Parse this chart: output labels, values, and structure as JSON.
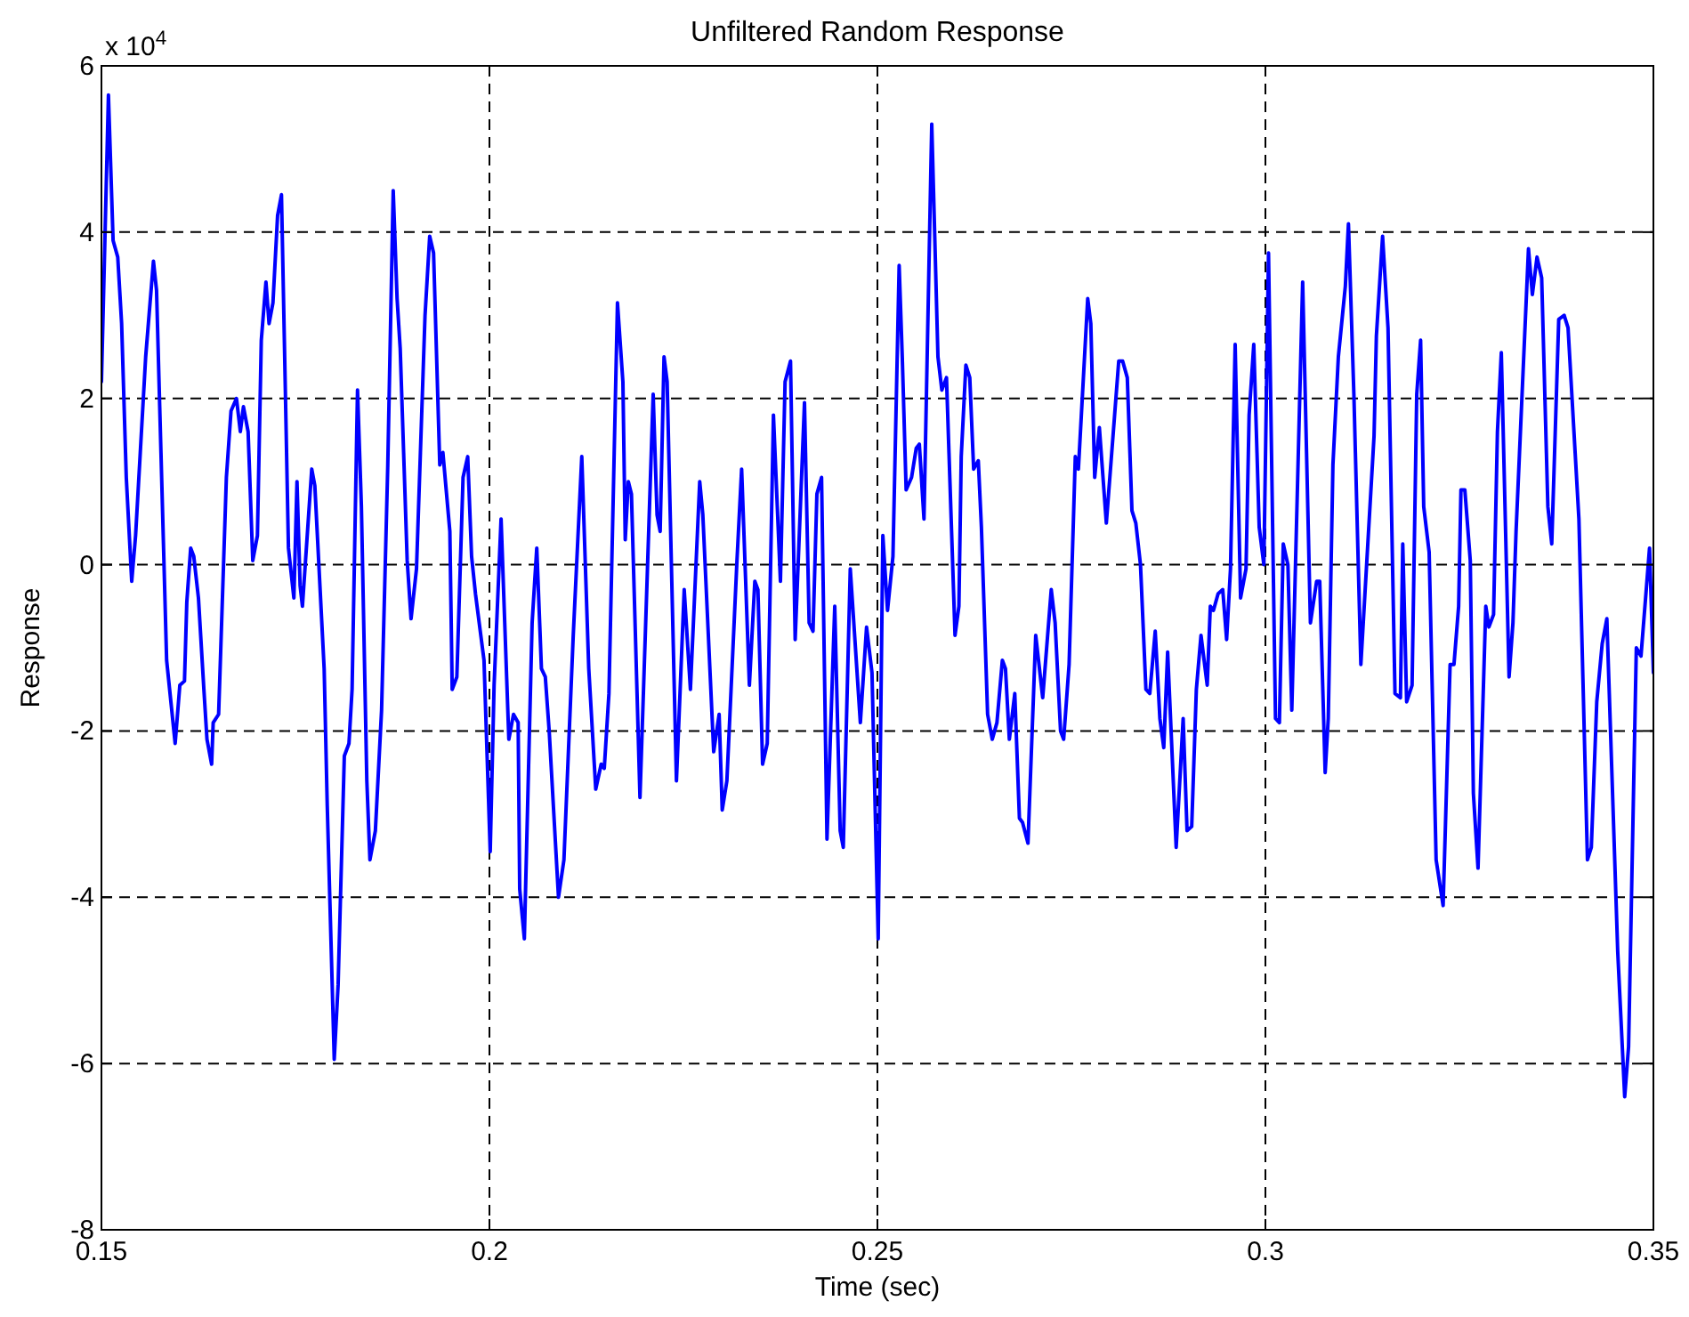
{
  "chart_data": {
    "type": "line",
    "title": "Unfiltered Random Response",
    "xlabel": "Time (sec)",
    "ylabel": "Response",
    "annotations": [
      "x 10$^{4}$"
    ],
    "xlim": [
      0.15,
      0.35
    ],
    "xticks": [
      0.15,
      0.2,
      0.25,
      0.3,
      0.35
    ],
    "ylim": [
      -8,
      6
    ],
    "yticks": [
      -8,
      -6,
      -4,
      -2,
      0,
      2,
      4,
      6
    ],
    "grid": true,
    "line_style": "solid",
    "series": [
      {
        "color": "#0000ff",
        "x": [
          0.15,
          0.1509,
          0.1515,
          0.1521,
          0.1526,
          0.1532,
          0.1539,
          0.1544,
          0.1557,
          0.1567,
          0.1571,
          0.1584,
          0.1595,
          0.1601,
          0.1607,
          0.161,
          0.1615,
          0.1619,
          0.1625,
          0.1632,
          0.1636,
          0.1642,
          0.1644,
          0.1651,
          0.1661,
          0.1667,
          0.1674,
          0.1679,
          0.1683,
          0.1689,
          0.1695,
          0.1701,
          0.1706,
          0.1712,
          0.1716,
          0.1721,
          0.1727,
          0.1732,
          0.1741,
          0.1748,
          0.1752,
          0.1756,
          0.1759,
          0.1771,
          0.1775,
          0.1787,
          0.1791,
          0.18,
          0.1805,
          0.1813,
          0.1819,
          0.1823,
          0.183,
          0.1835,
          0.1842,
          0.1846,
          0.1853,
          0.1861,
          0.1869,
          0.1876,
          0.1881,
          0.1885,
          0.1894,
          0.1899,
          0.1906,
          0.1917,
          0.1923,
          0.1928,
          0.1936,
          0.194,
          0.1949,
          0.1952,
          0.1958,
          0.1966,
          0.1972,
          0.1977,
          0.1982,
          0.1993,
          0.2001,
          0.2006,
          0.2015,
          0.2025,
          0.2031,
          0.2037,
          0.2039,
          0.2045,
          0.2055,
          0.2061,
          0.2067,
          0.2072,
          0.2077,
          0.2089,
          0.2096,
          0.2108,
          0.2119,
          0.2128,
          0.2137,
          0.2144,
          0.2148,
          0.2154,
          0.2165,
          0.2172,
          0.2175,
          0.2179,
          0.2183,
          0.2194,
          0.2211,
          0.2216,
          0.222,
          0.2225,
          0.2229,
          0.2241,
          0.2251,
          0.2259,
          0.2271,
          0.2275,
          0.2289,
          0.2296,
          0.23,
          0.2306,
          0.2319,
          0.2325,
          0.2335,
          0.2342,
          0.2346,
          0.2352,
          0.2358,
          0.2366,
          0.2375,
          0.2381,
          0.2388,
          0.2394,
          0.2406,
          0.2412,
          0.2417,
          0.2422,
          0.2428,
          0.2435,
          0.2445,
          0.2452,
          0.2456,
          0.2465,
          0.2478,
          0.2486,
          0.2493,
          0.2501,
          0.2507,
          0.2513,
          0.252,
          0.2528,
          0.2532,
          0.2537,
          0.2544,
          0.255,
          0.2554,
          0.256,
          0.257,
          0.2578,
          0.2583,
          0.2589,
          0.26,
          0.2605,
          0.2608,
          0.2614,
          0.2619,
          0.2624,
          0.263,
          0.2634,
          0.2642,
          0.2648,
          0.2654,
          0.2661,
          0.2665,
          0.267,
          0.2677,
          0.2683,
          0.2687,
          0.2694,
          0.2704,
          0.2713,
          0.2724,
          0.2729,
          0.2736,
          0.274,
          0.2747,
          0.2755,
          0.2759,
          0.2771,
          0.2775,
          0.278,
          0.2786,
          0.2795,
          0.2811,
          0.2816,
          0.2822,
          0.2828,
          0.2833,
          0.2839,
          0.2846,
          0.2851,
          0.2858,
          0.2864,
          0.2869,
          0.2874,
          0.2885,
          0.2894,
          0.2899,
          0.2905,
          0.2911,
          0.2917,
          0.2925,
          0.2929,
          0.2933,
          0.2939,
          0.2945,
          0.295,
          0.2955,
          0.2961,
          0.2968,
          0.2975,
          0.2979,
          0.2985,
          0.2992,
          0.2998,
          0.3004,
          0.3013,
          0.3018,
          0.3023,
          0.3029,
          0.3034,
          0.3048,
          0.3058,
          0.3066,
          0.307,
          0.3077,
          0.3081,
          0.3087,
          0.3094,
          0.3103,
          0.3107,
          0.3114,
          0.3123,
          0.314,
          0.3143,
          0.3151,
          0.3158,
          0.3167,
          0.3174,
          0.3177,
          0.3182,
          0.3189,
          0.3195,
          0.32,
          0.3204,
          0.3211,
          0.322,
          0.3229,
          0.3238,
          0.3243,
          0.3249,
          0.3252,
          0.3257,
          0.3264,
          0.3268,
          0.3274,
          0.3284,
          0.3288,
          0.3294,
          0.3299,
          0.3304,
          0.3314,
          0.3319,
          0.3323,
          0.3339,
          0.3344,
          0.335,
          0.3356,
          0.3364,
          0.3369,
          0.3378,
          0.3385,
          0.339,
          0.3404,
          0.3415,
          0.342,
          0.3427,
          0.3434,
          0.344,
          0.3454,
          0.3463,
          0.3468,
          0.3478,
          0.3484,
          0.3495,
          0.35
        ],
        "values": [
          2.2,
          5.65,
          3.9,
          3.7,
          2.9,
          1.05,
          -0.2,
          0.35,
          2.5,
          3.65,
          3.3,
          -1.15,
          -2.15,
          -1.45,
          -1.4,
          -0.45,
          0.2,
          0.1,
          -0.4,
          -1.5,
          -2.1,
          -2.4,
          -1.9,
          -1.8,
          1.05,
          1.85,
          2.0,
          1.6,
          1.9,
          1.6,
          0.05,
          0.35,
          2.7,
          3.4,
          2.9,
          3.15,
          4.2,
          4.45,
          0.2,
          -0.4,
          1.0,
          -0.25,
          -0.5,
          1.15,
          0.95,
          -1.25,
          -2.9,
          -5.95,
          -5.05,
          -2.3,
          -2.15,
          -1.5,
          2.1,
          0.7,
          -2.6,
          -3.55,
          -3.2,
          -1.75,
          1.2,
          4.5,
          3.2,
          2.6,
          0.05,
          -0.65,
          -0.05,
          3.0,
          3.95,
          3.75,
          1.2,
          1.35,
          0.4,
          -1.5,
          -1.35,
          1.05,
          1.3,
          0.1,
          -0.35,
          -1.15,
          -3.45,
          -1.45,
          0.55,
          -2.1,
          -1.8,
          -1.9,
          -3.9,
          -4.5,
          -0.7,
          0.2,
          -1.25,
          -1.35,
          -2.0,
          -4.0,
          -3.55,
          -0.85,
          1.3,
          -1.25,
          -2.7,
          -2.4,
          -2.45,
          -1.55,
          3.15,
          2.2,
          0.3,
          1.0,
          0.85,
          -2.8,
          2.05,
          0.6,
          0.4,
          2.5,
          2.2,
          -2.6,
          -0.3,
          -1.5,
          1.0,
          0.6,
          -2.25,
          -1.8,
          -2.95,
          -2.6,
          0.05,
          1.15,
          -1.45,
          -0.2,
          -0.3,
          -2.4,
          -2.15,
          1.8,
          -0.2,
          2.2,
          2.45,
          -0.9,
          1.95,
          -0.7,
          -0.8,
          0.85,
          1.05,
          -3.3,
          -0.5,
          -3.2,
          -3.4,
          -0.05,
          -1.9,
          -0.75,
          -1.3,
          -4.5,
          0.35,
          -0.55,
          0.1,
          3.6,
          2.5,
          0.9,
          1.05,
          1.4,
          1.45,
          0.55,
          5.3,
          2.5,
          2.1,
          2.25,
          -0.85,
          -0.5,
          1.3,
          2.4,
          2.25,
          1.15,
          1.25,
          0.45,
          -1.8,
          -2.1,
          -1.9,
          -1.15,
          -1.25,
          -2.1,
          -1.55,
          -3.05,
          -3.1,
          -3.35,
          -0.85,
          -1.6,
          -0.3,
          -0.7,
          -2.0,
          -2.1,
          -1.2,
          1.3,
          1.15,
          3.2,
          2.9,
          1.05,
          1.65,
          0.5,
          2.45,
          2.45,
          2.25,
          0.65,
          0.5,
          0,
          -1.5,
          -1.55,
          -0.8,
          -1.85,
          -2.2,
          -1.05,
          -3.4,
          -1.85,
          -3.2,
          -3.15,
          -1.5,
          -0.85,
          -1.45,
          -0.5,
          -0.55,
          -0.35,
          -0.3,
          -0.9,
          -0.05,
          2.65,
          -0.4,
          -0.05,
          1.8,
          2.65,
          0.45,
          0,
          3.75,
          -1.85,
          -1.9,
          0.25,
          0,
          -1.75,
          3.4,
          -0.7,
          -0.2,
          -0.2,
          -2.5,
          -1.85,
          1.2,
          2.5,
          3.35,
          4.1,
          2.05,
          -1.2,
          1.55,
          2.75,
          3.95,
          2.85,
          -1.55,
          -1.6,
          0.25,
          -1.65,
          -1.45,
          2.05,
          2.7,
          0.7,
          0.15,
          -3.55,
          -4.1,
          -1.2,
          -1.2,
          -0.5,
          0.9,
          0.9,
          0.05,
          -2.75,
          -3.65,
          -0.5,
          -0.75,
          -0.6,
          1.6,
          2.55,
          -1.35,
          -0.7,
          0.4,
          3.8,
          3.25,
          3.7,
          3.45,
          0.7,
          0.25,
          2.95,
          3.0,
          2.85,
          0.55,
          -3.55,
          -3.4,
          -1.65,
          -0.95,
          -0.65,
          -4.65,
          -6.4,
          -5.8,
          -1.0,
          -1.1,
          0.2,
          -1.3
        ]
      }
    ]
  }
}
